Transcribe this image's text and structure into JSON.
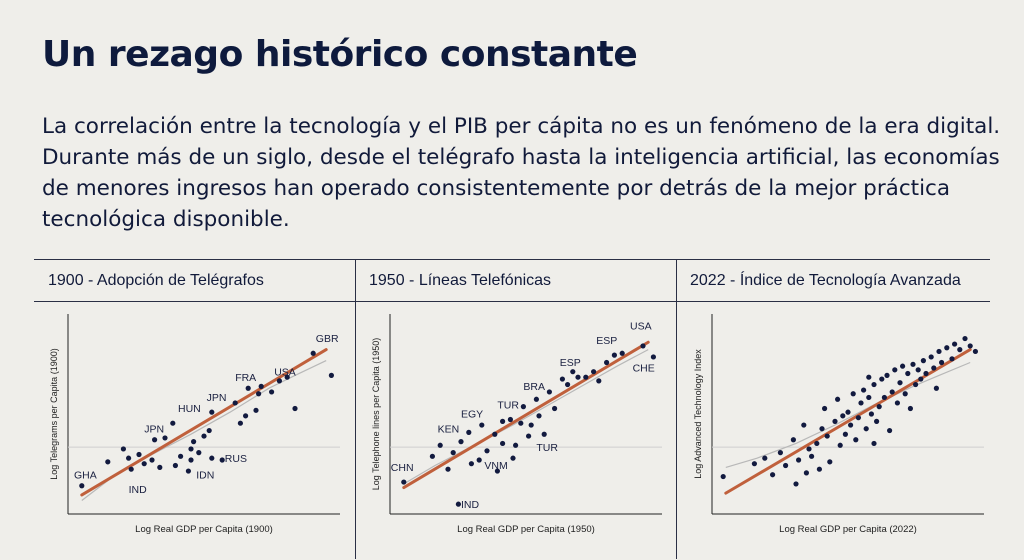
{
  "title": "Un rezago histórico constante",
  "intro": "La correlación entre la tecnología y el PIB per cápita no es un fenómeno de la era digital. Durante más de un siglo, desde el telégrafo hasta la inteligencia artificial, las economías de menores ingresos han operado consistentemente por detrás de la mejor práctica tecnológica disponible.",
  "colors": {
    "background": "#efeeea",
    "text": "#0e1a3d",
    "points": "#121a3f",
    "trend": "#c0603c",
    "smooth": "#b8b8b8",
    "reference": "#cfcfcf"
  },
  "chart_data": [
    {
      "type": "scatter",
      "title": "1900 - Adopción de Telégrafos",
      "xlabel": "Log Real GDP per Capita (1900)",
      "ylabel": "Log Telegrams per Capita (1900)",
      "xlim": [
        0,
        10
      ],
      "ylim": [
        0,
        10
      ],
      "grid": false,
      "reference_line_y": 3.2,
      "trend": {
        "x": [
          0.3,
          9.7
        ],
        "y": [
          0.6,
          8.5
        ]
      },
      "smooth": {
        "x": [
          0.3,
          1.5,
          3.0,
          4.5,
          6.0,
          7.5,
          8.5,
          9.7
        ],
        "y": [
          0.3,
          1.6,
          2.8,
          3.9,
          5.1,
          6.4,
          7.1,
          7.9
        ]
      },
      "points": [
        [
          0.3,
          1.1
        ],
        [
          1.3,
          2.4
        ],
        [
          1.9,
          3.1
        ],
        [
          2.1,
          2.6
        ],
        [
          2.2,
          2.0
        ],
        [
          2.5,
          2.8
        ],
        [
          2.7,
          2.3
        ],
        [
          3.0,
          2.5
        ],
        [
          3.1,
          3.6
        ],
        [
          3.3,
          2.1
        ],
        [
          3.5,
          3.7
        ],
        [
          3.8,
          4.5
        ],
        [
          3.9,
          2.2
        ],
        [
          4.1,
          2.7
        ],
        [
          4.4,
          1.9
        ],
        [
          4.5,
          2.5
        ],
        [
          4.5,
          3.1
        ],
        [
          4.8,
          2.9
        ],
        [
          4.6,
          3.5
        ],
        [
          5.0,
          3.8
        ],
        [
          5.2,
          4.1
        ],
        [
          5.3,
          2.6
        ],
        [
          5.7,
          2.5
        ],
        [
          5.3,
          5.1
        ],
        [
          6.2,
          5.6
        ],
        [
          6.4,
          4.5
        ],
        [
          6.7,
          6.4
        ],
        [
          6.6,
          4.9
        ],
        [
          7.0,
          5.2
        ],
        [
          7.1,
          6.1
        ],
        [
          7.2,
          6.5
        ],
        [
          7.6,
          6.2
        ],
        [
          7.9,
          6.8
        ],
        [
          8.2,
          7.0
        ],
        [
          8.5,
          5.3
        ],
        [
          9.2,
          8.3
        ],
        [
          9.9,
          7.1
        ]
      ],
      "annotations": [
        {
          "text": "GBR",
          "x": 9.3,
          "y": 8.9
        },
        {
          "text": "USA",
          "x": 7.7,
          "y": 7.1
        },
        {
          "text": "FRA",
          "x": 6.2,
          "y": 6.8
        },
        {
          "text": "JPN",
          "x": 5.1,
          "y": 5.7
        },
        {
          "text": "HUN",
          "x": 4.0,
          "y": 5.1
        },
        {
          "text": "JPN",
          "x": 2.7,
          "y": 4.0
        },
        {
          "text": "RUS",
          "x": 5.8,
          "y": 2.4
        },
        {
          "text": "IDN",
          "x": 4.7,
          "y": 1.5
        },
        {
          "text": "GHA",
          "x": 0.0,
          "y": 1.5
        },
        {
          "text": "IND",
          "x": 2.1,
          "y": 0.7
        }
      ]
    },
    {
      "type": "scatter",
      "title": "1950 - Líneas Telefónicas",
      "xlabel": "Log Real GDP per Capita (1950)",
      "ylabel": "Log Telephone lines per Capita (1950)",
      "xlim": [
        0,
        10
      ],
      "ylim": [
        0,
        10
      ],
      "grid": false,
      "reference_line_y": 3.2,
      "trend": {
        "x": [
          0.3,
          9.7
        ],
        "y": [
          1.0,
          8.9
        ]
      },
      "smooth": {
        "x": [
          0.3,
          1.5,
          3.0,
          4.5,
          6.0,
          7.5,
          8.5,
          9.7
        ],
        "y": [
          1.2,
          2.2,
          3.3,
          4.4,
          5.6,
          6.8,
          7.6,
          8.5
        ]
      },
      "points": [
        [
          0.3,
          1.3
        ],
        [
          1.4,
          2.7
        ],
        [
          1.7,
          3.3
        ],
        [
          2.0,
          2.0
        ],
        [
          2.2,
          2.9
        ],
        [
          2.5,
          3.5
        ],
        [
          2.4,
          0.1
        ],
        [
          2.8,
          4.0
        ],
        [
          2.9,
          2.3
        ],
        [
          3.2,
          2.5
        ],
        [
          3.3,
          4.4
        ],
        [
          3.5,
          3.0
        ],
        [
          3.8,
          3.9
        ],
        [
          3.9,
          1.9
        ],
        [
          4.1,
          3.4
        ],
        [
          4.1,
          4.6
        ],
        [
          4.4,
          4.7
        ],
        [
          4.5,
          2.6
        ],
        [
          4.6,
          3.3
        ],
        [
          4.8,
          4.5
        ],
        [
          4.9,
          5.4
        ],
        [
          5.1,
          3.8
        ],
        [
          5.2,
          4.4
        ],
        [
          5.4,
          5.8
        ],
        [
          5.5,
          4.9
        ],
        [
          5.7,
          3.9
        ],
        [
          5.9,
          6.2
        ],
        [
          6.1,
          5.3
        ],
        [
          6.4,
          6.9
        ],
        [
          6.6,
          6.6
        ],
        [
          6.8,
          7.3
        ],
        [
          7.0,
          7.0
        ],
        [
          7.3,
          7.0
        ],
        [
          7.6,
          7.3
        ],
        [
          7.8,
          6.8
        ],
        [
          8.1,
          7.8
        ],
        [
          8.4,
          8.2
        ],
        [
          8.7,
          8.3
        ],
        [
          9.5,
          8.7
        ],
        [
          9.9,
          8.1
        ]
      ],
      "annotations": [
        {
          "text": "USA",
          "x": 9.0,
          "y": 9.6
        },
        {
          "text": "ESP",
          "x": 7.7,
          "y": 8.8
        },
        {
          "text": "CHE",
          "x": 9.1,
          "y": 7.3
        },
        {
          "text": "ESP",
          "x": 6.3,
          "y": 7.6
        },
        {
          "text": "BRA",
          "x": 4.9,
          "y": 6.3
        },
        {
          "text": "TUR",
          "x": 3.9,
          "y": 5.3
        },
        {
          "text": "EGY",
          "x": 2.5,
          "y": 4.8
        },
        {
          "text": "KEN",
          "x": 1.6,
          "y": 4.0
        },
        {
          "text": "TUR",
          "x": 5.4,
          "y": 3.0
        },
        {
          "text": "VNM",
          "x": 3.4,
          "y": 2.0
        },
        {
          "text": "CHN",
          "x": -0.2,
          "y": 1.9
        },
        {
          "text": "IND",
          "x": 2.5,
          "y": -0.1
        }
      ]
    },
    {
      "type": "scatter",
      "title": "2022 - Índice de Tecnología Avanzada",
      "xlabel": "Log Real GDP per Capita (2022)",
      "ylabel": "Log Advanced Technology Index",
      "xlim": [
        0,
        10
      ],
      "ylim": [
        0,
        10
      ],
      "grid": false,
      "reference_line_y": 3.2,
      "trend": {
        "x": [
          0.3,
          9.7
        ],
        "y": [
          0.7,
          8.5
        ]
      },
      "smooth": {
        "x": [
          0.3,
          1.5,
          3.0,
          4.5,
          6.0,
          7.5,
          8.5,
          9.7
        ],
        "y": [
          2.1,
          2.6,
          3.4,
          4.4,
          5.5,
          6.5,
          7.1,
          7.8
        ]
      },
      "points": [
        [
          0.2,
          1.6
        ],
        [
          1.4,
          2.3
        ],
        [
          1.8,
          2.6
        ],
        [
          2.1,
          1.7
        ],
        [
          2.4,
          2.9
        ],
        [
          2.6,
          2.2
        ],
        [
          2.9,
          3.6
        ],
        [
          3.0,
          1.2
        ],
        [
          3.1,
          2.5
        ],
        [
          3.3,
          4.4
        ],
        [
          3.4,
          1.8
        ],
        [
          3.5,
          3.1
        ],
        [
          3.6,
          2.7
        ],
        [
          3.8,
          3.4
        ],
        [
          3.9,
          2.0
        ],
        [
          4.0,
          4.2
        ],
        [
          4.1,
          5.3
        ],
        [
          4.2,
          3.8
        ],
        [
          4.3,
          2.4
        ],
        [
          4.5,
          4.6
        ],
        [
          4.6,
          5.8
        ],
        [
          4.7,
          3.3
        ],
        [
          4.8,
          4.9
        ],
        [
          4.9,
          3.9
        ],
        [
          5.0,
          5.1
        ],
        [
          5.1,
          4.4
        ],
        [
          5.2,
          6.1
        ],
        [
          5.3,
          3.6
        ],
        [
          5.4,
          4.8
        ],
        [
          5.5,
          5.6
        ],
        [
          5.6,
          6.3
        ],
        [
          5.7,
          4.2
        ],
        [
          5.8,
          5.9
        ],
        [
          5.9,
          5.0
        ],
        [
          6.0,
          6.6
        ],
        [
          6.1,
          4.6
        ],
        [
          6.2,
          5.4
        ],
        [
          6.3,
          6.9
        ],
        [
          6.4,
          5.9
        ],
        [
          6.5,
          7.1
        ],
        [
          6.6,
          4.1
        ],
        [
          6.7,
          6.2
        ],
        [
          6.8,
          7.4
        ],
        [
          6.9,
          5.6
        ],
        [
          7.0,
          6.7
        ],
        [
          7.1,
          7.6
        ],
        [
          7.2,
          6.1
        ],
        [
          7.3,
          7.2
        ],
        [
          7.4,
          5.3
        ],
        [
          7.5,
          7.7
        ],
        [
          7.6,
          6.6
        ],
        [
          7.7,
          7.4
        ],
        [
          7.8,
          6.9
        ],
        [
          7.9,
          7.9
        ],
        [
          8.0,
          7.2
        ],
        [
          8.2,
          8.1
        ],
        [
          8.3,
          7.5
        ],
        [
          8.5,
          8.4
        ],
        [
          8.6,
          7.8
        ],
        [
          8.8,
          8.6
        ],
        [
          9.0,
          8.0
        ],
        [
          9.1,
          8.8
        ],
        [
          9.3,
          8.5
        ],
        [
          9.5,
          9.1
        ],
        [
          9.7,
          8.7
        ],
        [
          9.9,
          8.4
        ],
        [
          6.0,
          3.4
        ],
        [
          5.8,
          7.0
        ],
        [
          8.4,
          6.4
        ]
      ],
      "annotations": []
    }
  ]
}
